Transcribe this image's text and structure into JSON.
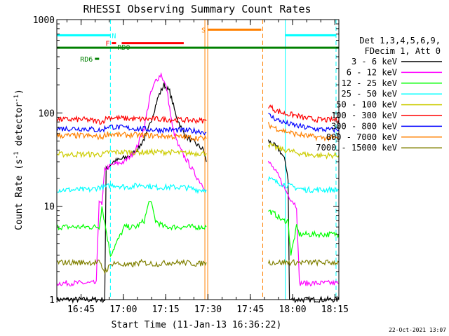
{
  "chart_data": {
    "type": "line",
    "title": "RHESSI Observing Summary Count Rates",
    "xlabel": "Start Time (11-Jan-13 16:36:22)",
    "ylabel_main": "Count Rate (s",
    "ylabel_sup1": "-1",
    "ylabel_mid": " detector",
    "ylabel_sup2": "-1",
    "ylabel_end": ")",
    "yscale": "log",
    "ylim": [
      1,
      1000
    ],
    "xlim_minutes": [
      0,
      100
    ],
    "x_ticks": [
      {
        "label": "16:45",
        "min": 8.6
      },
      {
        "label": "17:00",
        "min": 23.6
      },
      {
        "label": "17:15",
        "min": 38.6
      },
      {
        "label": "17:30",
        "min": 53.6
      },
      {
        "label": "17:45",
        "min": 68.6
      },
      {
        "label": "18:00",
        "min": 83.6
      },
      {
        "label": "18:15",
        "min": 98.6
      }
    ],
    "y_ticks": [
      {
        "label": "1",
        "value": 1
      },
      {
        "label": "10",
        "value": 10
      },
      {
        "label": "100",
        "value": 100
      },
      {
        "label": "1000",
        "value": 1000
      }
    ],
    "legend_header": [
      "Det 1,3,4,5,6,9,",
      "FDecim 1, Att 0"
    ],
    "legend_placement": "right",
    "series": [
      {
        "name": "3 - 6 keV",
        "color": "#000000",
        "segments": [
          {
            "x": [
              0,
              17,
              17.5,
              20,
              23,
              26,
              29,
              32,
              34,
              36,
              38,
              40,
              42,
              44,
              46,
              48,
              50,
              52,
              53
            ],
            "y": [
              1,
              1,
              25,
              30,
              32,
              35,
              42,
              60,
              95,
              150,
              200,
              170,
              100,
              70,
              55,
              50,
              45,
              40,
              30
            ]
          },
          {
            "x": [
              75,
              77,
              79,
              80,
              81,
              82,
              82.5,
              100
            ],
            "y": [
              50,
              45,
              40,
              35,
              30,
              20,
              1,
              1
            ]
          }
        ]
      },
      {
        "name": "6 - 12 keV",
        "color": "#ff00ff",
        "segments": [
          {
            "x": [
              0,
              14,
              15,
              16,
              17,
              20,
              24,
              28,
              31,
              33,
              35,
              37,
              39,
              41,
              43,
              45,
              47,
              49,
              51,
              53
            ],
            "y": [
              1.5,
              1.5,
              12,
              10,
              25,
              28,
              30,
              40,
              70,
              150,
              220,
              260,
              180,
              70,
              45,
              35,
              28,
              22,
              18,
              15
            ]
          },
          {
            "x": [
              75,
              77,
              79,
              81,
              83,
              85,
              86,
              100
            ],
            "y": [
              30,
              25,
              20,
              15,
              12,
              10,
              1.5,
              1.5
            ]
          }
        ]
      },
      {
        "name": "12 - 25 keV",
        "color": "#00ff00",
        "segments": [
          {
            "x": [
              0,
              15,
              16,
              19,
              24,
              28,
              31,
              33,
              35,
              38,
              42,
              46,
              50,
              53
            ],
            "y": [
              6,
              6,
              10,
              3,
              6,
              6,
              7,
              12,
              7,
              6,
              6,
              6,
              6,
              6
            ]
          },
          {
            "x": [
              75,
              78,
              80,
              82,
              83,
              85,
              86,
              100
            ],
            "y": [
              9,
              8,
              7,
              7,
              3,
              6,
              5,
              5
            ]
          }
        ]
      },
      {
        "name": "25 - 50 keV",
        "color": "#00ffff",
        "segments": [
          {
            "x": [
              0,
              12,
              15,
              17,
              20,
              25,
              30,
              35,
              40,
              45,
              50,
              53
            ],
            "y": [
              15,
              15,
              16,
              16,
              17,
              16,
              17,
              16,
              16,
              16,
              15,
              15
            ]
          },
          {
            "x": [
              75,
              78,
              81,
              84,
              88,
              92,
              96,
              100
            ],
            "y": [
              20,
              18,
              17,
              16,
              15,
              15,
              15,
              15
            ]
          }
        ]
      },
      {
        "name": "50 - 100 keV",
        "color": "#cccc00",
        "segments": [
          {
            "x": [
              0,
              10,
              17,
              18,
              25,
              30,
              35,
              40,
              45,
              50,
              53
            ],
            "y": [
              36,
              36,
              36,
              38,
              38,
              38,
              38,
              38,
              37,
              37,
              37
            ]
          },
          {
            "x": [
              75,
              78,
              81,
              84,
              88,
              92,
              96,
              100
            ],
            "y": [
              46,
              42,
              40,
              38,
              36,
              35,
              35,
              35
            ]
          }
        ]
      },
      {
        "name": "100 - 300 keV",
        "color": "#ff0000",
        "segments": [
          {
            "x": [
              0,
              10,
              16,
              18,
              22,
              28,
              35,
              40,
              45,
              50,
              53
            ],
            "y": [
              85,
              85,
              80,
              90,
              88,
              86,
              86,
              85,
              84,
              83,
              82
            ]
          },
          {
            "x": [
              75,
              78,
              81,
              84,
              88,
              92,
              96,
              100
            ],
            "y": [
              120,
              105,
              98,
              95,
              88,
              85,
              84,
              84
            ]
          }
        ]
      },
      {
        "name": "300 - 800 keV",
        "color": "#0000ff",
        "segments": [
          {
            "x": [
              0,
              10,
              16,
              18,
              22,
              28,
              35,
              40,
              45,
              50,
              53
            ],
            "y": [
              68,
              68,
              65,
              72,
              70,
              68,
              66,
              66,
              65,
              64,
              62
            ]
          },
          {
            "x": [
              75,
              78,
              81,
              84,
              88,
              92,
              96,
              100
            ],
            "y": [
              95,
              85,
              78,
              74,
              70,
              67,
              66,
              66
            ]
          }
        ]
      },
      {
        "name": "800 - 7000 keV",
        "color": "#ff8000",
        "segments": [
          {
            "x": [
              0,
              10,
              16,
              18,
              22,
              28,
              35,
              40,
              45,
              50,
              53
            ],
            "y": [
              57,
              57,
              55,
              60,
              58,
              58,
              57,
              56,
              55,
              54,
              53
            ]
          },
          {
            "x": [
              75,
              78,
              81,
              84,
              88,
              92,
              96,
              100
            ],
            "y": [
              75,
              68,
              64,
              60,
              57,
              55,
              54,
              54
            ]
          }
        ]
      },
      {
        "name": "7000 - 15000 keV",
        "color": "#808000",
        "segments": [
          {
            "x": [
              0,
              15,
              17,
              20,
              25,
              30,
              35,
              40,
              45,
              50,
              53
            ],
            "y": [
              2.5,
              2.5,
              2.0,
              2.5,
              2.3,
              2.5,
              2.4,
              2.5,
              2.5,
              2.4,
              2.5
            ]
          },
          {
            "x": [
              75,
              78,
              81,
              84,
              88,
              92,
              96,
              100
            ],
            "y": [
              2.5,
              2.5,
              2.5,
              2.5,
              2.5,
              2.5,
              2.5,
              2.5
            ]
          }
        ]
      }
    ],
    "vertical_lines": [
      {
        "min": 19.0,
        "color": "#00ffff",
        "style": "dashed"
      },
      {
        "min": 81.0,
        "color": "#00ffff",
        "style": "solid"
      },
      {
        "min": 99.0,
        "color": "#00ffff",
        "style": "dashed"
      },
      {
        "min": 52.5,
        "color": "#ff8000",
        "style": "solid"
      },
      {
        "min": 53.5,
        "color": "#ff8000",
        "style": "solid"
      },
      {
        "min": 73.0,
        "color": "#ff8000",
        "style": "dashed"
      }
    ],
    "flag_bars": [
      {
        "label": "N",
        "color": "#00ffff",
        "y": 680,
        "segments": [
          [
            0,
            19
          ],
          [
            81,
            99
          ]
        ]
      },
      {
        "label": "S",
        "color": "#ff8000",
        "y": 780,
        "segments": [
          [
            53.5,
            72.5
          ]
        ]
      },
      {
        "label": "F",
        "color": "#ff0000",
        "y": 560,
        "segments": [
          [
            19.5,
            21
          ],
          [
            23,
            45
          ]
        ]
      },
      {
        "label": "RD0",
        "color": "#008000",
        "y": 500,
        "segments": [
          [
            0,
            100
          ]
        ]
      },
      {
        "label": "RD6",
        "color": "#008000",
        "y": 380,
        "segments": [
          [
            13.5,
            15
          ]
        ]
      }
    ],
    "timestamp": "22-Oct-2021 13:07"
  }
}
